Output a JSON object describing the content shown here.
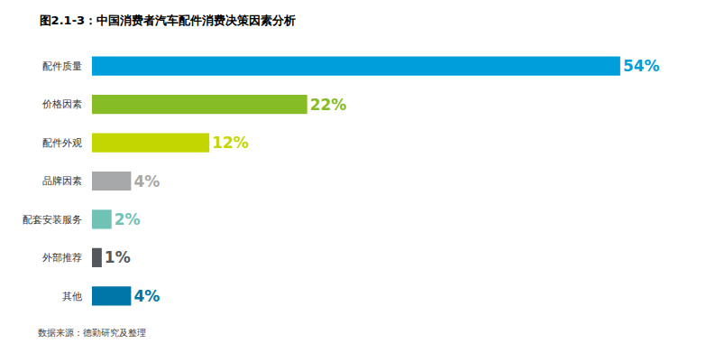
{
  "chart_data": {
    "type": "bar",
    "title": "图2.1-3：中国消费者汽车配件消费决策因素分析",
    "orientation": "horizontal",
    "categories": [
      "配件质量",
      "价格因素",
      "配件外观",
      "品牌因素",
      "配套安装服务",
      "外部推荐",
      "其他"
    ],
    "values": [
      54,
      22,
      12,
      4,
      2,
      1,
      4
    ],
    "value_labels": [
      "54%",
      "22%",
      "12%",
      "4%",
      "2%",
      "1%",
      "4%"
    ],
    "colors": [
      "#009fdb",
      "#86bc25",
      "#c4d600",
      "#a7a8aa",
      "#6fc2b4",
      "#53565a",
      "#0076a8"
    ],
    "data_labels": true,
    "xlim": [
      0,
      60
    ],
    "grid": false,
    "tick_labels": "y",
    "annotations": [
      "数据来源：德勤研究及整理"
    ]
  }
}
